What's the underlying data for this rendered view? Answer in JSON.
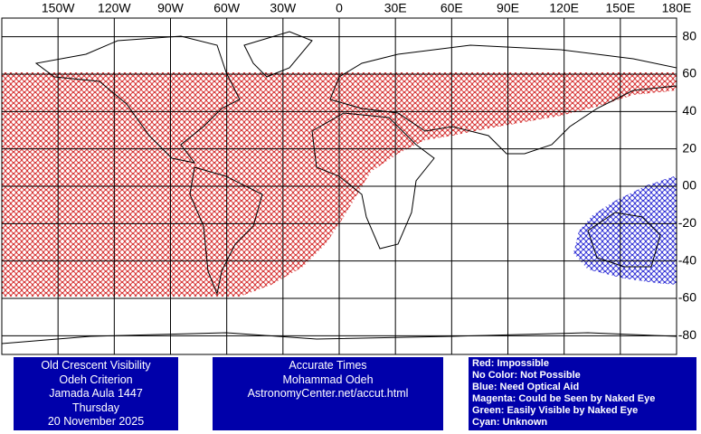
{
  "map": {
    "longitude_labels": [
      {
        "value": -150,
        "label": "150W"
      },
      {
        "value": -120,
        "label": "120W"
      },
      {
        "value": -90,
        "label": "90W"
      },
      {
        "value": -60,
        "label": "60W"
      },
      {
        "value": -30,
        "label": "30W"
      },
      0,
      {
        "value": 30,
        "label": "30E"
      },
      {
        "value": 60,
        "label": "60E"
      },
      {
        "value": 90,
        "label": "90E"
      },
      {
        "value": 120,
        "label": "120E"
      },
      {
        "value": 150,
        "label": "150E"
      },
      {
        "value": 180,
        "label": "180E"
      }
    ],
    "latitude_labels": [
      80,
      60,
      40,
      20,
      {
        "value": 0,
        "label": "00"
      },
      -20,
      -40,
      -60,
      -80
    ]
  },
  "info_boxes": [
    {
      "lines": [
        "Old Crescent Visibility",
        "Odeh Criterion",
        "Jamada Aula 1447",
        "Thursday",
        "20 November 2025"
      ]
    },
    {
      "lines": [
        "Accurate Times",
        "Mohammad Odeh",
        "AstronomyCenter.net/accut.html"
      ]
    }
  ],
  "legend": {
    "lines": [
      "Red: Impossible",
      "No Color: Not Possible",
      "Blue: Need Optical Aid",
      "Magenta: Could be Seen by Naked Eye",
      "Green: Easily Visible by Naked Eye",
      "Cyan: Unknown"
    ]
  }
}
